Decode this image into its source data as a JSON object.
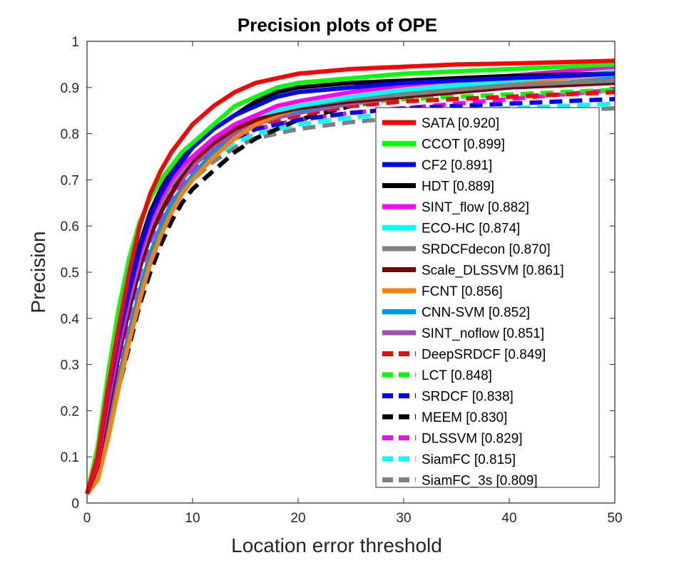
{
  "chart_data": {
    "type": "line",
    "title": "Precision plots of OPE",
    "xlabel": "Location error threshold",
    "ylabel": "Precision",
    "xlim": [
      0,
      50
    ],
    "ylim": [
      0,
      1
    ],
    "xticks": [
      0,
      10,
      20,
      30,
      40,
      50
    ],
    "yticks": [
      0,
      0.1,
      0.2,
      0.3,
      0.4,
      0.5,
      0.6,
      0.7,
      0.8,
      0.9,
      1
    ],
    "ytick_labels": [
      "0",
      "0.1",
      "0.2",
      "0.3",
      "0.4",
      "0.5",
      "0.6",
      "0.7",
      "0.8",
      "0.9",
      "1"
    ],
    "grid": false,
    "legend_position": "lower-right",
    "x": [
      0,
      1,
      2,
      3,
      4,
      5,
      6,
      7,
      8,
      9,
      10,
      12,
      14,
      16,
      18,
      20,
      25,
      30,
      35,
      40,
      45,
      50
    ],
    "series": [
      {
        "name": "SATA [0.920]",
        "color": "#ff0000",
        "dash": "solid",
        "values": [
          0.02,
          0.1,
          0.25,
          0.38,
          0.5,
          0.6,
          0.67,
          0.72,
          0.76,
          0.79,
          0.82,
          0.86,
          0.89,
          0.91,
          0.92,
          0.93,
          0.94,
          0.945,
          0.95,
          0.952,
          0.955,
          0.958
        ]
      },
      {
        "name": "CCOT [0.899]",
        "color": "#00ff00",
        "dash": "solid",
        "values": [
          0.02,
          0.12,
          0.28,
          0.42,
          0.53,
          0.61,
          0.66,
          0.7,
          0.73,
          0.76,
          0.78,
          0.82,
          0.86,
          0.88,
          0.9,
          0.91,
          0.92,
          0.93,
          0.935,
          0.94,
          0.945,
          0.95
        ]
      },
      {
        "name": "CF2 [0.891]",
        "color": "#0000ff",
        "dash": "solid",
        "values": [
          0.02,
          0.1,
          0.24,
          0.36,
          0.46,
          0.55,
          0.62,
          0.67,
          0.71,
          0.74,
          0.77,
          0.81,
          0.84,
          0.86,
          0.88,
          0.89,
          0.9,
          0.91,
          0.915,
          0.92,
          0.925,
          0.93
        ]
      },
      {
        "name": "HDT [0.889]",
        "color": "#000000",
        "dash": "solid",
        "values": [
          0.02,
          0.1,
          0.24,
          0.36,
          0.47,
          0.56,
          0.63,
          0.68,
          0.72,
          0.75,
          0.77,
          0.81,
          0.84,
          0.87,
          0.89,
          0.9,
          0.91,
          0.915,
          0.92,
          0.925,
          0.928,
          0.93
        ]
      },
      {
        "name": "SINT_flow [0.882]",
        "color": "#ff00ff",
        "dash": "solid",
        "values": [
          0.02,
          0.09,
          0.22,
          0.34,
          0.45,
          0.54,
          0.61,
          0.66,
          0.7,
          0.73,
          0.75,
          0.79,
          0.82,
          0.84,
          0.86,
          0.87,
          0.89,
          0.905,
          0.915,
          0.925,
          0.935,
          0.945
        ]
      },
      {
        "name": "ECO-HC [0.874]",
        "color": "#00ffff",
        "dash": "solid",
        "values": [
          0.02,
          0.09,
          0.22,
          0.34,
          0.45,
          0.54,
          0.61,
          0.66,
          0.7,
          0.73,
          0.75,
          0.79,
          0.82,
          0.84,
          0.85,
          0.86,
          0.88,
          0.895,
          0.905,
          0.915,
          0.925,
          0.935
        ]
      },
      {
        "name": "SRDCFdecon [0.870]",
        "color": "#808080",
        "dash": "solid",
        "values": [
          0.02,
          0.09,
          0.22,
          0.34,
          0.44,
          0.53,
          0.6,
          0.65,
          0.69,
          0.72,
          0.75,
          0.79,
          0.82,
          0.84,
          0.85,
          0.86,
          0.875,
          0.885,
          0.895,
          0.905,
          0.91,
          0.915
        ]
      },
      {
        "name": "Scale_DLSSVM [0.861]",
        "color": "#800000",
        "dash": "solid",
        "values": [
          0.02,
          0.08,
          0.2,
          0.32,
          0.42,
          0.51,
          0.58,
          0.63,
          0.67,
          0.71,
          0.74,
          0.78,
          0.81,
          0.83,
          0.845,
          0.855,
          0.87,
          0.88,
          0.89,
          0.9,
          0.905,
          0.91
        ]
      },
      {
        "name": "FCNT [0.856]",
        "color": "#ff8000",
        "dash": "solid",
        "values": [
          0.02,
          0.05,
          0.14,
          0.25,
          0.35,
          0.44,
          0.52,
          0.58,
          0.63,
          0.67,
          0.7,
          0.75,
          0.79,
          0.82,
          0.84,
          0.855,
          0.875,
          0.89,
          0.9,
          0.91,
          0.92,
          0.93
        ]
      },
      {
        "name": "CNN-SVM [0.852]",
        "color": "#0099e0",
        "dash": "solid",
        "values": [
          0.02,
          0.06,
          0.16,
          0.27,
          0.37,
          0.46,
          0.54,
          0.6,
          0.65,
          0.68,
          0.71,
          0.76,
          0.79,
          0.82,
          0.84,
          0.85,
          0.87,
          0.88,
          0.89,
          0.9,
          0.91,
          0.92
        ]
      },
      {
        "name": "SINT_noflow [0.851]",
        "color": "#a050b0",
        "dash": "solid",
        "values": [
          0.02,
          0.08,
          0.2,
          0.32,
          0.42,
          0.51,
          0.58,
          0.63,
          0.67,
          0.7,
          0.73,
          0.77,
          0.8,
          0.82,
          0.835,
          0.845,
          0.865,
          0.88,
          0.89,
          0.9,
          0.905,
          0.91
        ]
      },
      {
        "name": "DeepSRDCF [0.849]",
        "color": "#ff0000",
        "dash": "dashed",
        "values": [
          0.02,
          0.09,
          0.21,
          0.33,
          0.43,
          0.52,
          0.59,
          0.64,
          0.68,
          0.71,
          0.74,
          0.78,
          0.8,
          0.82,
          0.83,
          0.84,
          0.86,
          0.87,
          0.875,
          0.88,
          0.885,
          0.89
        ]
      },
      {
        "name": "LCT [0.848]",
        "color": "#00ff00",
        "dash": "dashed",
        "values": [
          0.02,
          0.1,
          0.23,
          0.35,
          0.45,
          0.54,
          0.61,
          0.66,
          0.7,
          0.73,
          0.75,
          0.79,
          0.81,
          0.83,
          0.84,
          0.85,
          0.865,
          0.875,
          0.88,
          0.885,
          0.89,
          0.895
        ]
      },
      {
        "name": "SRDCF [0.838]",
        "color": "#0000ff",
        "dash": "dashed",
        "values": [
          0.02,
          0.09,
          0.21,
          0.33,
          0.43,
          0.52,
          0.59,
          0.64,
          0.68,
          0.71,
          0.73,
          0.77,
          0.79,
          0.81,
          0.82,
          0.83,
          0.845,
          0.855,
          0.86,
          0.865,
          0.87,
          0.875
        ]
      },
      {
        "name": "MEEM [0.830]",
        "color": "#000000",
        "dash": "dashed",
        "values": [
          0.02,
          0.06,
          0.15,
          0.25,
          0.34,
          0.43,
          0.5,
          0.56,
          0.61,
          0.65,
          0.68,
          0.72,
          0.76,
          0.79,
          0.81,
          0.83,
          0.86,
          0.88,
          0.89,
          0.9,
          0.91,
          0.915
        ]
      },
      {
        "name": "DLSSVM [0.829]",
        "color": "#ff00ff",
        "dash": "dashed",
        "values": [
          0.02,
          0.08,
          0.2,
          0.31,
          0.41,
          0.5,
          0.57,
          0.62,
          0.66,
          0.69,
          0.72,
          0.76,
          0.79,
          0.81,
          0.82,
          0.83,
          0.845,
          0.855,
          0.865,
          0.875,
          0.885,
          0.895
        ]
      },
      {
        "name": "SiamFC [0.815]",
        "color": "#00ffff",
        "dash": "dashed",
        "values": [
          0.02,
          0.08,
          0.19,
          0.3,
          0.4,
          0.49,
          0.56,
          0.61,
          0.65,
          0.68,
          0.71,
          0.75,
          0.78,
          0.8,
          0.81,
          0.82,
          0.835,
          0.845,
          0.85,
          0.855,
          0.86,
          0.865
        ]
      },
      {
        "name": "SiamFC_3s [0.809]",
        "color": "#808080",
        "dash": "dashed",
        "values": [
          0.02,
          0.07,
          0.18,
          0.29,
          0.39,
          0.48,
          0.55,
          0.6,
          0.64,
          0.67,
          0.7,
          0.74,
          0.77,
          0.79,
          0.8,
          0.81,
          0.825,
          0.835,
          0.84,
          0.845,
          0.85,
          0.855
        ]
      }
    ]
  }
}
